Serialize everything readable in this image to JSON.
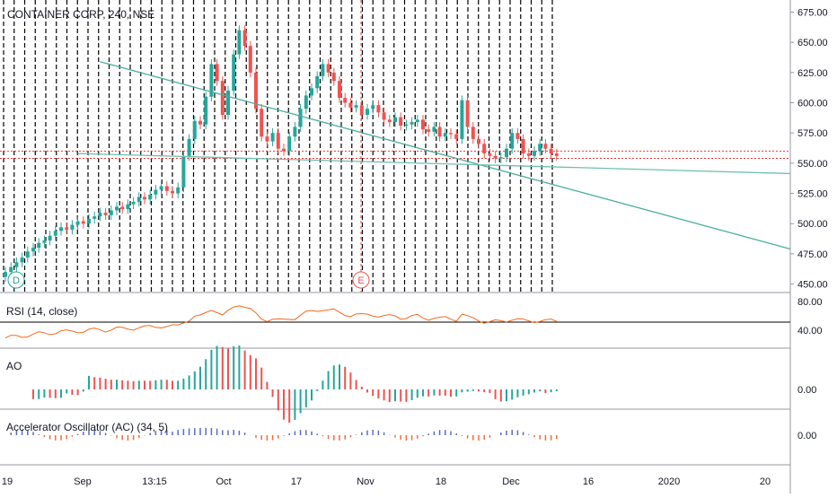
{
  "chart_data": {
    "type": "candlestick",
    "title": "CONTAINER CORP, 240, NSE",
    "price_axis": {
      "ticks": [
        "675.00",
        "650.00",
        "625.00",
        "600.00",
        "575.00",
        "550.00",
        "525.00",
        "500.00",
        "475.00",
        "450.00"
      ],
      "range": [
        443,
        685
      ]
    },
    "time_axis": {
      "ticks": [
        "19",
        "Sep",
        "13:15",
        "Oct",
        "17",
        "Nov",
        "18",
        "Dec",
        "16",
        "2020",
        "20"
      ]
    },
    "markers": [
      "D",
      "E"
    ],
    "horizontal_levels": [
      554,
      560
    ],
    "trendlines": [
      {
        "name": "resistance",
        "from": [
          17,
          634
        ],
        "to": [
          65,
          574
        ],
        "extended": true
      },
      {
        "name": "support",
        "from": [
          13,
          558
        ],
        "to": [
          67,
          551
        ],
        "extended": true
      }
    ],
    "candles_close": [
      460,
      464,
      468,
      472,
      477,
      480,
      484,
      486,
      490,
      494,
      497,
      495,
      499,
      502,
      500,
      504,
      506,
      509,
      507,
      511,
      514,
      512,
      516,
      518,
      522,
      520,
      524,
      528,
      531,
      527,
      525,
      530,
      556,
      570,
      585,
      582,
      605,
      632,
      618,
      590,
      610,
      640,
      660,
      647,
      625,
      595,
      572,
      568,
      575,
      562,
      560,
      572,
      580,
      595,
      606,
      612,
      622,
      632,
      625,
      618,
      604,
      600,
      596,
      598,
      590,
      595,
      598,
      592,
      586,
      584,
      588,
      581,
      582,
      584,
      586,
      578,
      576,
      580,
      572,
      575,
      574,
      570,
      602,
      580,
      570,
      566,
      558,
      556,
      554,
      555,
      562,
      575,
      570,
      558,
      556,
      560,
      566,
      562,
      558,
      556
    ]
  },
  "panels": {
    "rsi": {
      "label": "RSI (14, close)",
      "ticks": [
        "80.00",
        "40.00"
      ]
    },
    "ao": {
      "label": "AO",
      "ticks": [
        "0.00"
      ]
    },
    "ac": {
      "label": "Accelerator Oscillator (AC) (34, 5)",
      "ticks": [
        "0.00"
      ]
    }
  },
  "colors": {
    "up": "#26a69a",
    "down": "#ef5350",
    "rsi_line": "#f5691e",
    "resistance": "#4caf9f",
    "support": "#6fbfb0",
    "level": "#e53935"
  }
}
